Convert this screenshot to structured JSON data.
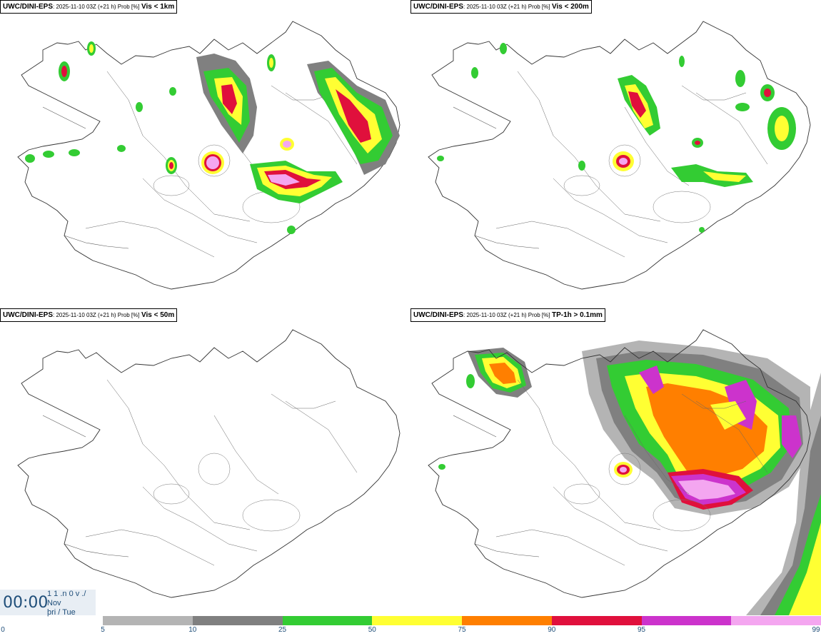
{
  "panels": [
    {
      "source": "UWC/DINI-EPS",
      "meta": "2025-11-10 03Z (+21 h) Prob [%]",
      "var": "Vis < 1km"
    },
    {
      "source": "UWC/DINI-EPS",
      "meta": "2025-11-10 03Z (+21 h) Prob [%]",
      "var": "Vis < 200m"
    },
    {
      "source": "UWC/DINI-EPS",
      "meta": "2025-11-10 03Z (+21 h) Prob [%]",
      "var": "Vis < 50m"
    },
    {
      "source": "UWC/DINI-EPS",
      "meta": "2025-11-10 03Z (+21 h) Prob [%]",
      "var": "TP-1h > 0.1mm"
    }
  ],
  "time": {
    "clock": "00:00",
    "line1": "1 1 .n 0 v ./",
    "line2": "Nov",
    "line3": "þri / Tue"
  },
  "legend": {
    "ticks": [
      "0",
      "5",
      "10",
      "25",
      "50",
      "75",
      "90",
      "95",
      "99"
    ],
    "colors": [
      "#b4b4b4",
      "#808080",
      "#33cc33",
      "#ffff33",
      "#ff7f00",
      "#e0103c",
      "#cc33cc",
      "#f4a6f0"
    ]
  }
}
